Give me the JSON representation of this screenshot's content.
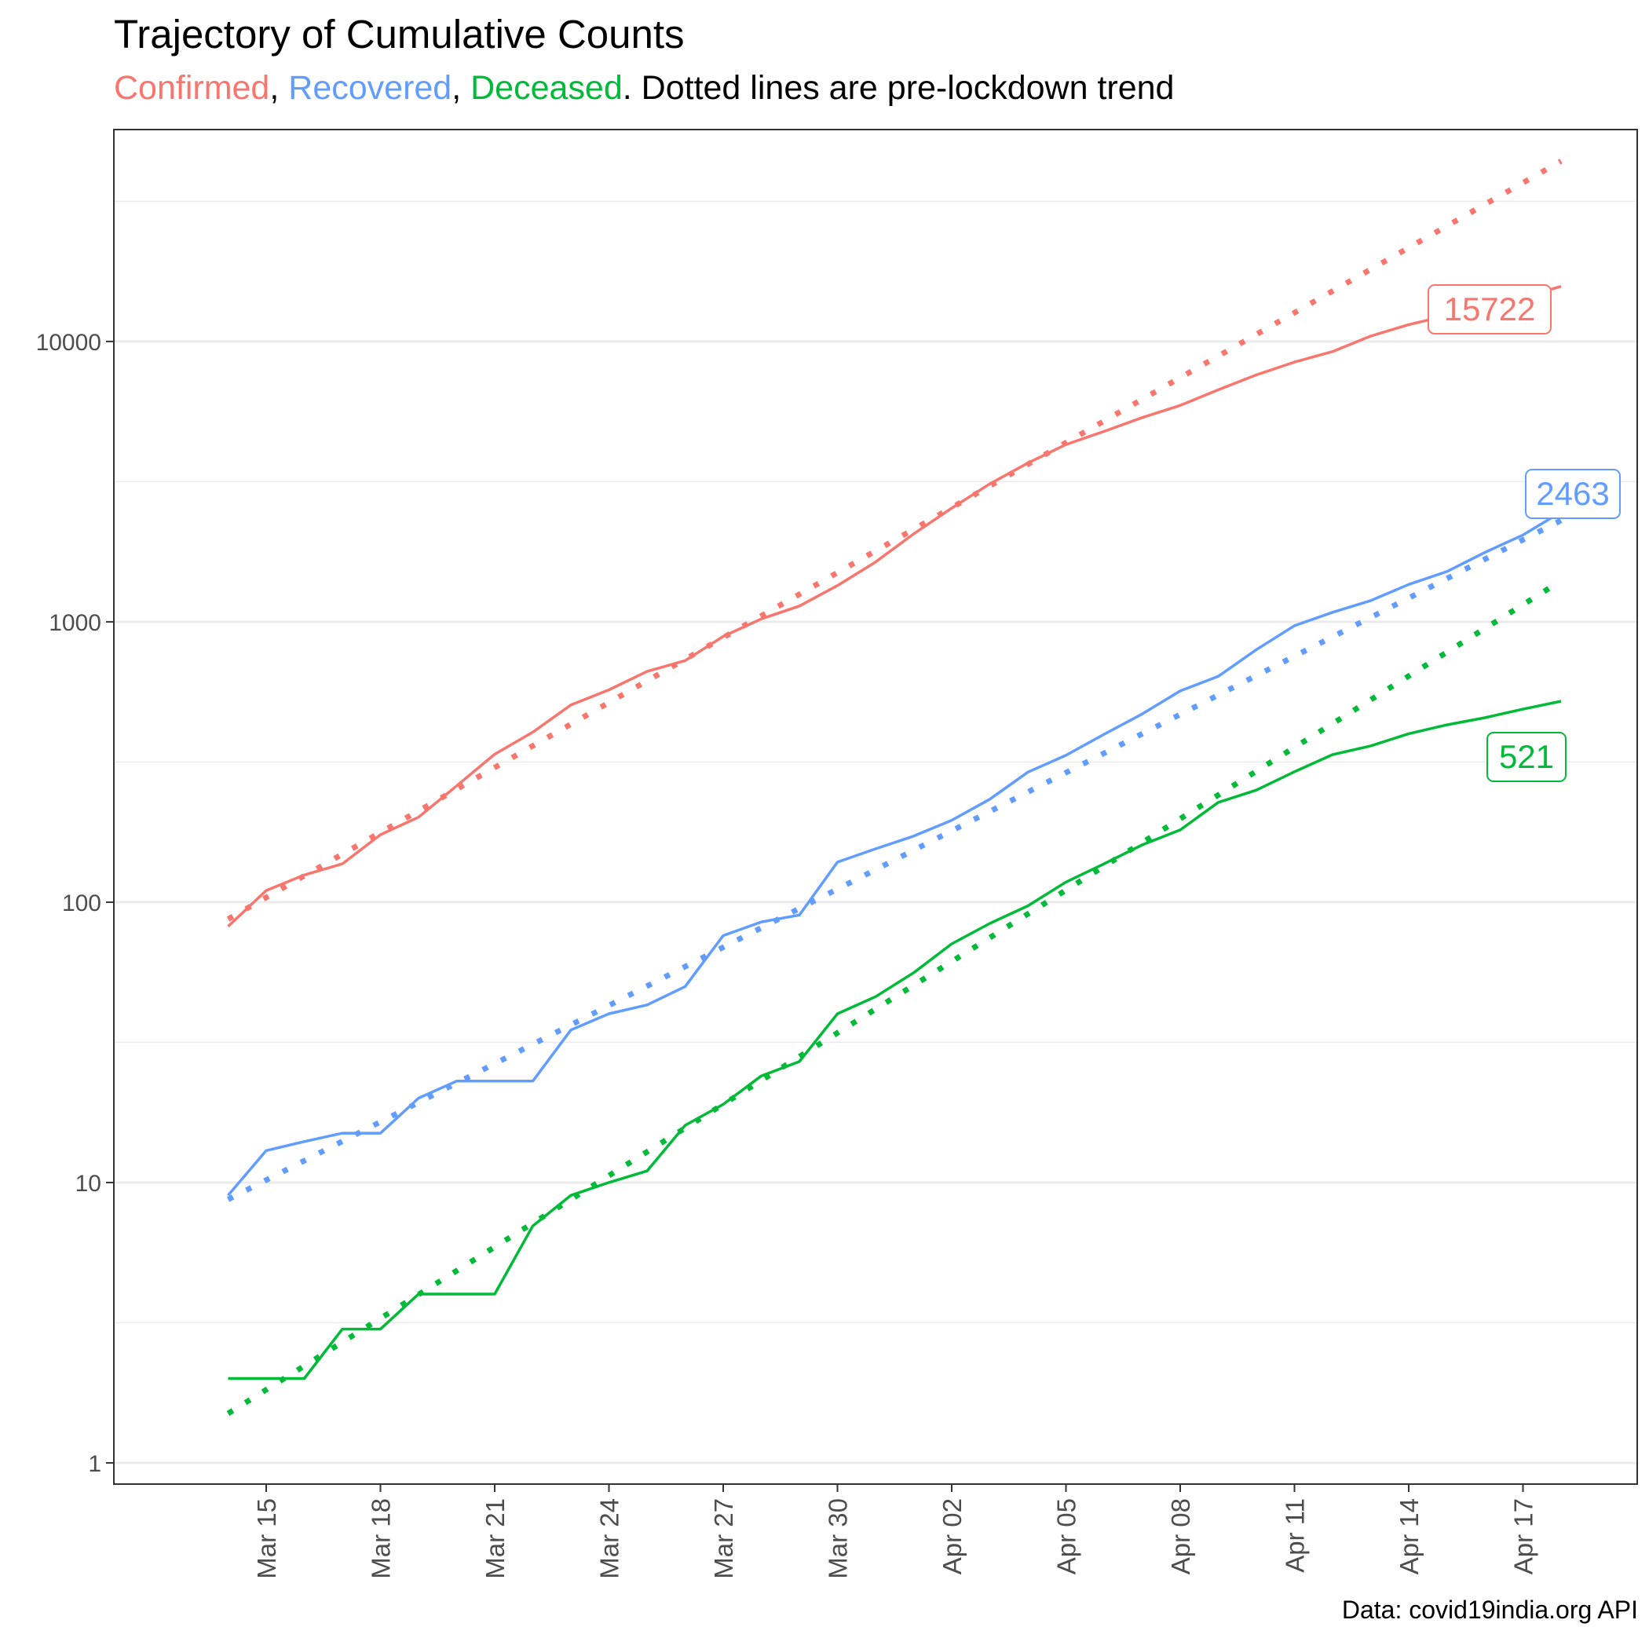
{
  "chart_data": {
    "type": "line",
    "title": "Trajectory of Cumulative Counts",
    "subtitle": {
      "parts": [
        {
          "text": "Confirmed",
          "color": "#F8766D"
        },
        {
          "text": ", ",
          "color": "#000000"
        },
        {
          "text": "Recovered",
          "color": "#619CFF"
        },
        {
          "text": ", ",
          "color": "#000000"
        },
        {
          "text": "Deceased",
          "color": "#00BA38"
        },
        {
          "text": ". Dotted lines are pre-lockdown trend",
          "color": "#000000"
        }
      ]
    },
    "caption": "Data: covid19india.org API",
    "xlabel": "",
    "ylabel": "",
    "x_start": "2020-03-14",
    "x_end": "2020-04-18",
    "x_range": [
      "2020-03-11",
      "2020-04-20"
    ],
    "y_scale": "log10",
    "y_range": [
      0.84,
      57000
    ],
    "y_ticks": [
      1,
      10,
      100,
      1000,
      10000
    ],
    "y_tick_labels": [
      "1",
      "10",
      "100",
      "1000",
      "10000"
    ],
    "x_ticks": [
      "2020-03-15",
      "2020-03-18",
      "2020-03-21",
      "2020-03-24",
      "2020-03-27",
      "2020-03-30",
      "2020-04-02",
      "2020-04-05",
      "2020-04-08",
      "2020-04-11",
      "2020-04-14",
      "2020-04-17"
    ],
    "x_tick_labels": [
      "Mar 15",
      "Mar 18",
      "Mar 21",
      "Mar 24",
      "Mar 27",
      "Mar 30",
      "Apr 02",
      "Apr 05",
      "Apr 08",
      "Apr 11",
      "Apr 14",
      "Apr 17"
    ],
    "grid": true,
    "legend": "none",
    "series": [
      {
        "key": "confirmed",
        "color": "#F8766D",
        "values": [
          82,
          110,
          125,
          137,
          174,
          201,
          260,
          337,
          404,
          505,
          572,
          665,
          727,
          887,
          1024,
          1138,
          1347,
          1635,
          2059,
          2545,
          3105,
          3684,
          4289,
          4778,
          5351,
          5916,
          6725,
          7600,
          8446,
          9205,
          10453,
          11487,
          12371,
          13430,
          14352,
          15722
        ],
        "trend": {
          "start": 87,
          "end": 44000
        },
        "label": "15722"
      },
      {
        "key": "recovered",
        "color": "#619CFF",
        "values": [
          9,
          13,
          14,
          15,
          15,
          20,
          23,
          23,
          23,
          35,
          40,
          43,
          50,
          76,
          85,
          90,
          139,
          155,
          172,
          196,
          233,
          291,
          334,
          397,
          469,
          567,
          639,
          796,
          969,
          1081,
          1190,
          1359,
          1511,
          1768,
          2041,
          2463
        ],
        "trend": {
          "start": 8.7,
          "end": 2300
        },
        "label": "2463"
      },
      {
        "key": "deceased",
        "color": "#00BA38",
        "values": [
          2,
          2,
          2,
          3,
          3,
          4,
          4,
          4,
          7,
          9,
          10,
          11,
          16,
          19,
          24,
          27,
          40,
          46,
          56,
          71,
          84,
          97,
          118,
          137,
          160,
          181,
          227,
          251,
          292,
          336,
          361,
          399,
          429,
          455,
          488,
          521
        ],
        "trend": {
          "start": 1.5,
          "end": 1400
        },
        "label": "521"
      }
    ]
  }
}
